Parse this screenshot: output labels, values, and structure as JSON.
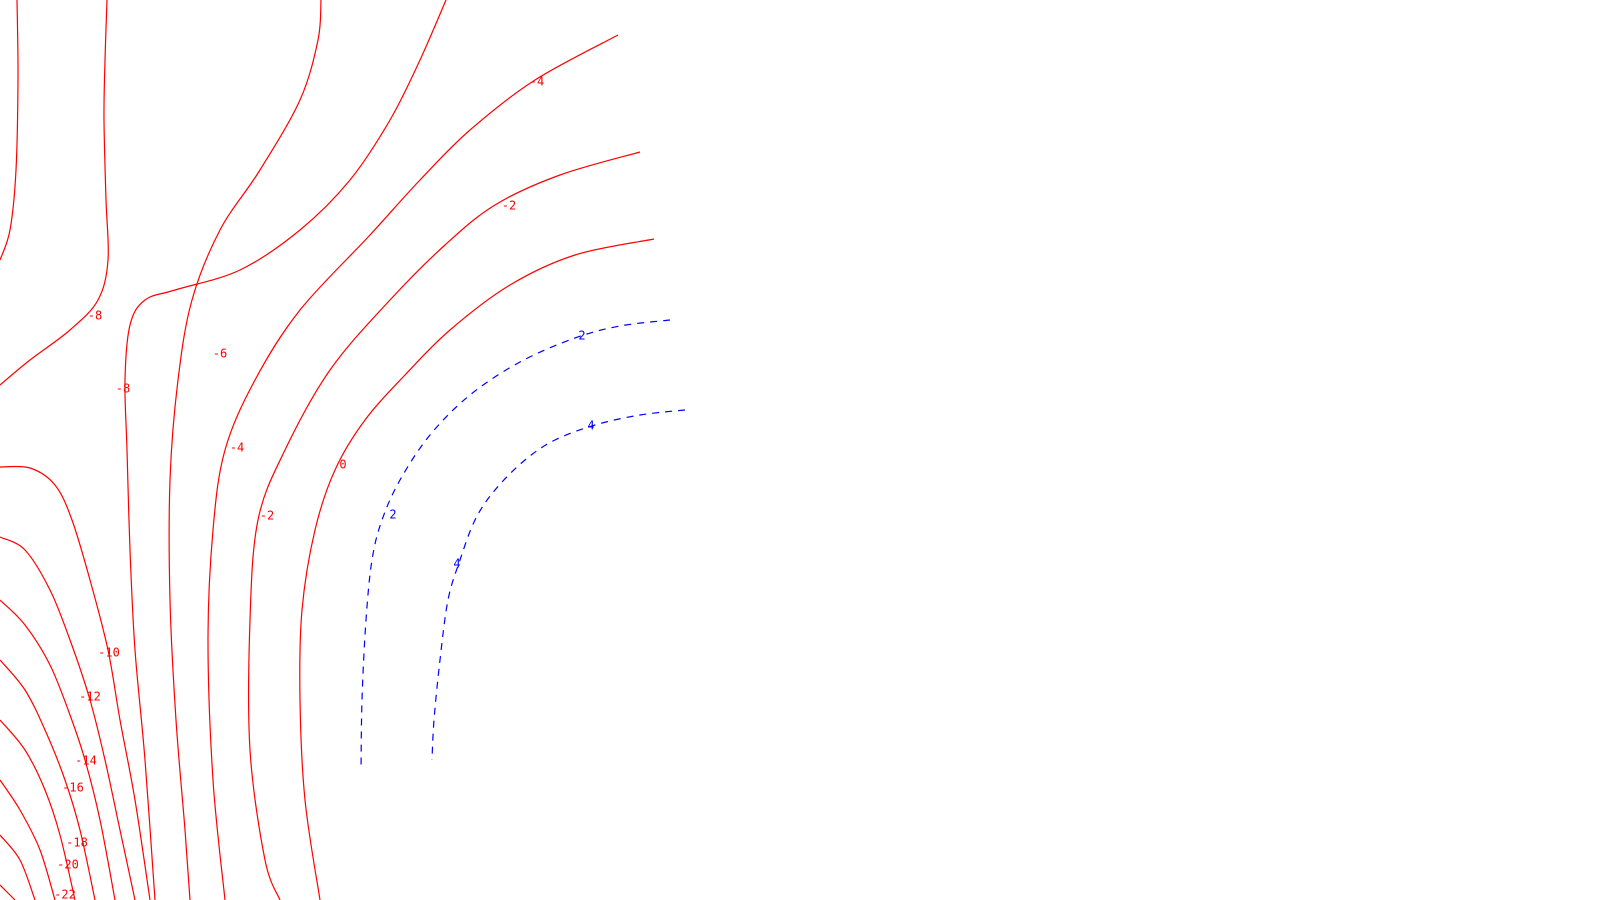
{
  "chart_data": {
    "type": "contour",
    "title": "",
    "xlabel": "",
    "ylabel": "",
    "grid": false,
    "colors": {
      "negative": "#ff0000",
      "positive": "#0000ff",
      "background": "#ffffff"
    },
    "line_styles": {
      "negative": "solid",
      "positive": "dashed"
    },
    "levels": [
      -22,
      -20,
      -18,
      -16,
      -14,
      -12,
      -10,
      -8,
      -6,
      -4,
      -2,
      0,
      2,
      4
    ],
    "labels": [
      {
        "id": "m4-top",
        "text": "-4",
        "sign": "negative"
      },
      {
        "id": "m2-top",
        "text": "-2",
        "sign": "negative"
      },
      {
        "id": "m8-a",
        "text": "-8",
        "sign": "negative"
      },
      {
        "id": "m6",
        "text": "-6",
        "sign": "negative"
      },
      {
        "id": "m8-b",
        "text": "-8",
        "sign": "negative"
      },
      {
        "id": "m4-left",
        "text": "-4",
        "sign": "negative"
      },
      {
        "id": "zero",
        "text": "0",
        "sign": "negative"
      },
      {
        "id": "m2-left",
        "text": "-2",
        "sign": "negative"
      },
      {
        "id": "m10",
        "text": "-10",
        "sign": "negative"
      },
      {
        "id": "m12",
        "text": "-12",
        "sign": "negative"
      },
      {
        "id": "m14",
        "text": "-14",
        "sign": "negative"
      },
      {
        "id": "m16",
        "text": "-16",
        "sign": "negative"
      },
      {
        "id": "m18",
        "text": "-18",
        "sign": "negative"
      },
      {
        "id": "m20",
        "text": "-20",
        "sign": "negative"
      },
      {
        "id": "m22",
        "text": "-22",
        "sign": "negative"
      },
      {
        "id": "p2-top",
        "text": "2",
        "sign": "positive"
      },
      {
        "id": "p4-top",
        "text": "4",
        "sign": "positive"
      },
      {
        "id": "p2-left",
        "text": "2",
        "sign": "positive"
      },
      {
        "id": "p4-left",
        "text": "4",
        "sign": "positive"
      }
    ]
  }
}
